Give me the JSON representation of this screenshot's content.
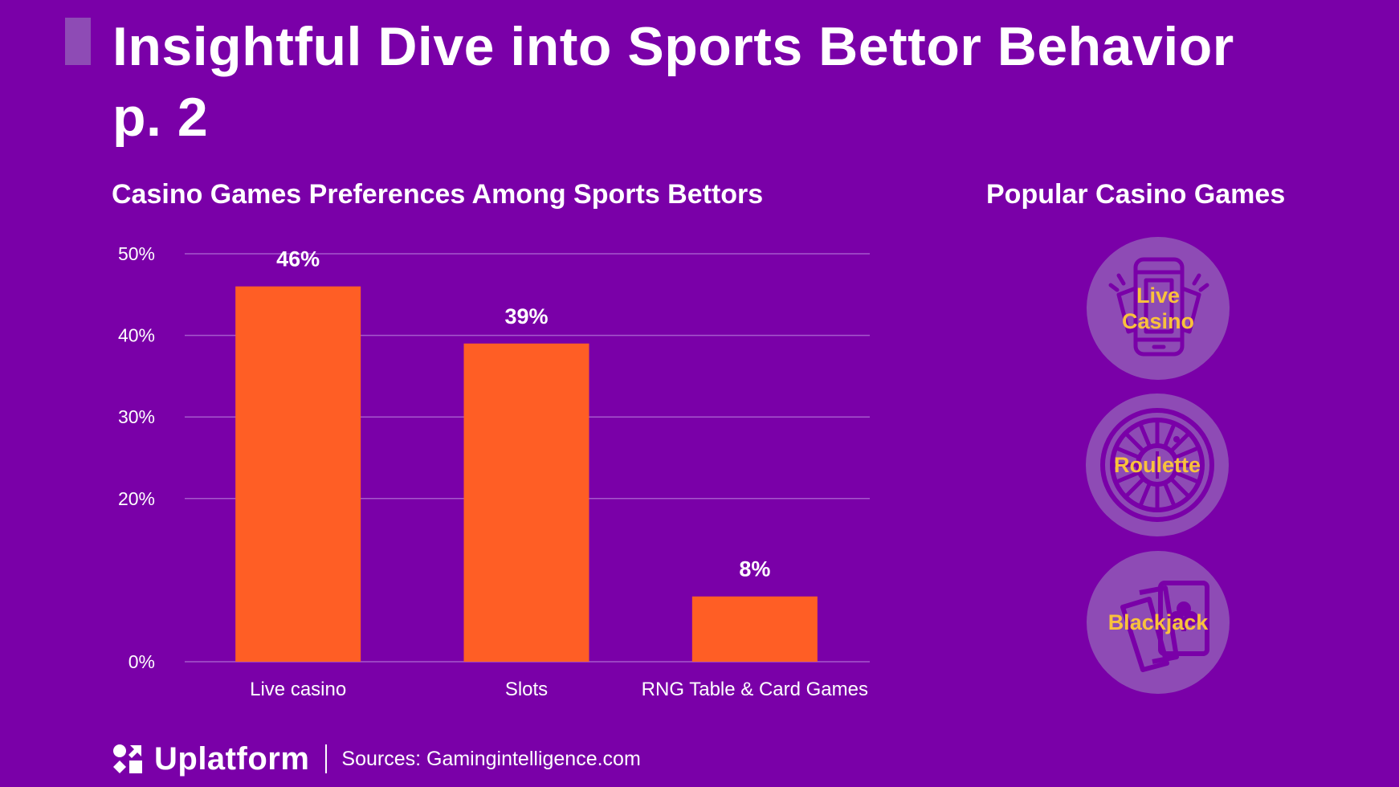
{
  "header": {
    "title": "Insightful Dive into Sports Bettor Behavior p. 2"
  },
  "colors": {
    "background": "#7A00A8",
    "accent": "#8E4BB5",
    "bar": "#FF5E25",
    "gridline": "#A659CC",
    "game_label": "#F9C23C"
  },
  "chart_data": {
    "type": "bar",
    "title": "Casino Games Preferences Among Sports Bettors",
    "categories": [
      "Live casino",
      "Slots",
      "RNG Table & Card Games"
    ],
    "values": [
      46,
      39,
      8
    ],
    "value_labels": [
      "46%",
      "39%",
      "8%"
    ],
    "xlabel": "",
    "ylabel": "",
    "ylim": [
      0,
      50
    ],
    "yticks": [
      0,
      20,
      30,
      40,
      50
    ],
    "ytick_labels": [
      "0%",
      "20%",
      "30%",
      "40%",
      "50%"
    ],
    "grid": true,
    "legend": "none"
  },
  "popular_games": {
    "title": "Popular Casino Games",
    "items": [
      {
        "label": "Live Casino",
        "icon": "smartphone-cards-icon"
      },
      {
        "label": "Roulette",
        "icon": "roulette-wheel-icon"
      },
      {
        "label": "Blackjack",
        "icon": "playing-cards-icon"
      }
    ]
  },
  "footer": {
    "brand": "Uplatform",
    "source": "Sources: Gamingintelligence.com"
  }
}
